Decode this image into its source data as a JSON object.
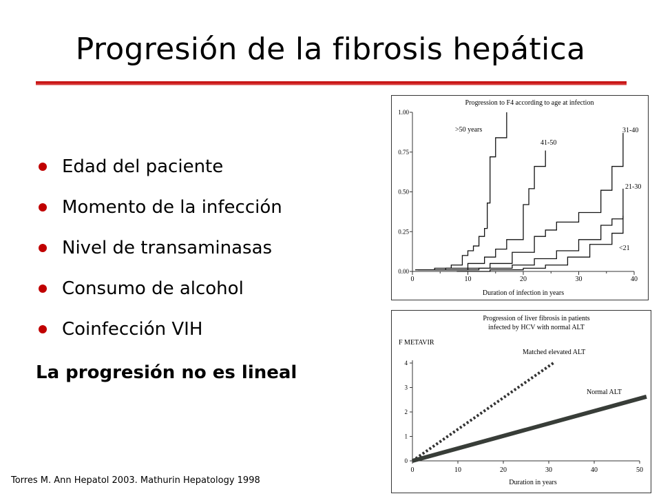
{
  "slide": {
    "title": "Progresión de la fibrosis hepática",
    "bullets": [
      "Edad del paciente",
      "Momento de la infección",
      "Nivel de transaminasas",
      "Consumo de alcohol",
      "Coinfección VIH"
    ],
    "note": "La progresión no es lineal",
    "source": "Torres M. Ann Hepatol 2003. Mathurin Hepatology 1998",
    "accent_color": "#c00000"
  },
  "chart_data": [
    {
      "type": "line",
      "title": "Progression to F4 according to age at infection",
      "xlabel": "Duration of infection in years",
      "ylabel": "",
      "xlim": [
        0,
        40
      ],
      "ylim": [
        0,
        1
      ],
      "xticks": [
        "0",
        "10",
        "20",
        "30",
        "40"
      ],
      "yticks": [
        "0.00",
        "0.25",
        "0.50",
        "0.75",
        "1.00"
      ],
      "grid": false,
      "series": [
        {
          "name": ">50 years",
          "x": [
            0.5,
            4,
            7,
            9,
            10,
            11,
            12,
            13,
            13.5,
            14,
            15,
            17
          ],
          "y": [
            0.01,
            0.02,
            0.04,
            0.1,
            0.13,
            0.16,
            0.22,
            0.27,
            0.43,
            0.72,
            0.84,
            1.0
          ]
        },
        {
          "name": "41-50",
          "x": [
            1,
            6,
            10,
            13,
            15,
            17,
            20,
            21,
            22,
            24
          ],
          "y": [
            0.01,
            0.02,
            0.05,
            0.09,
            0.14,
            0.2,
            0.42,
            0.52,
            0.66,
            0.76
          ]
        },
        {
          "name": "31-40",
          "x": [
            4,
            10,
            14,
            18,
            22,
            24,
            26,
            30,
            34,
            36,
            38
          ],
          "y": [
            0.01,
            0.02,
            0.05,
            0.12,
            0.22,
            0.26,
            0.31,
            0.37,
            0.51,
            0.66,
            0.87
          ]
        },
        {
          "name": "21-30",
          "x": [
            6,
            12,
            18,
            22,
            26,
            30,
            34,
            36,
            38
          ],
          "y": [
            0.01,
            0.02,
            0.04,
            0.08,
            0.13,
            0.2,
            0.29,
            0.33,
            0.52
          ]
        },
        {
          "name": "<21",
          "x": [
            8,
            14,
            20,
            24,
            28,
            32,
            36,
            38
          ],
          "y": [
            0.0,
            0.01,
            0.02,
            0.04,
            0.09,
            0.17,
            0.24,
            0.35
          ]
        }
      ]
    },
    {
      "type": "line",
      "title": "Progression of liver fibrosis in patients infected by HCV with normal ALT",
      "xlabel": "Duration in years",
      "ylabel": "F METAVIR",
      "xlim": [
        0,
        50
      ],
      "ylim": [
        0,
        4
      ],
      "xticks": [
        "0",
        "10",
        "20",
        "30",
        "40",
        "50"
      ],
      "yticks": [
        "0",
        "1",
        "2",
        "3",
        "4"
      ],
      "grid": false,
      "series": [
        {
          "name": "Matched elevated ALT",
          "style": "dotted",
          "x": [
            0,
            31
          ],
          "y": [
            0,
            4
          ]
        },
        {
          "name": "Normal ALT",
          "style": "solid-thick",
          "x": [
            0,
            52
          ],
          "y": [
            0,
            2.65
          ]
        }
      ]
    }
  ]
}
